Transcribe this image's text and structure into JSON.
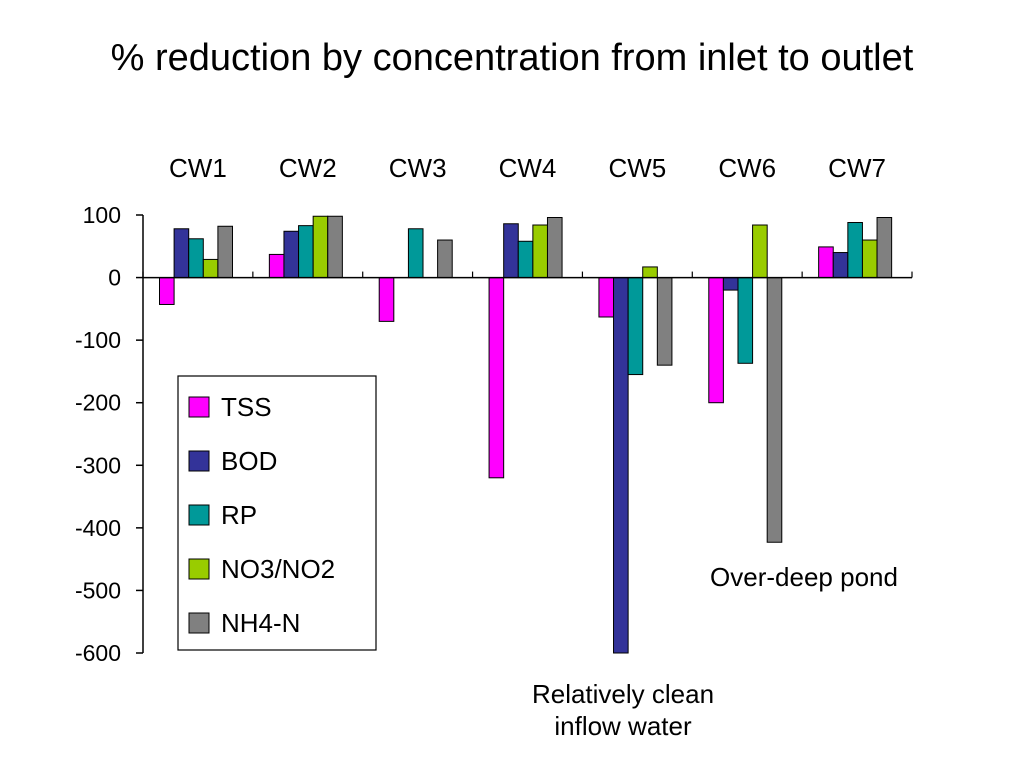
{
  "title": "% reduction by concentration from inlet to outlet",
  "chart_data": {
    "type": "bar",
    "title": "% reduction by concentration from inlet to outlet",
    "categories": [
      "CW1",
      "CW2",
      "CW3",
      "CW4",
      "CW5",
      "CW6",
      "CW7"
    ],
    "category_axis_position": "top",
    "ylim": [
      -600,
      100
    ],
    "yticks": [
      100,
      0,
      -100,
      -200,
      -300,
      -400,
      -500,
      -600
    ],
    "ytick_labels": [
      "100",
      "0",
      "-100",
      "-200",
      "-300",
      "-400",
      "-500",
      "-600"
    ],
    "grid": false,
    "legend_position": "bottom-left",
    "series": [
      {
        "name": "TSS",
        "color": "#FF00FF",
        "values": [
          -43,
          37,
          -70,
          -320,
          -63,
          -200,
          49
        ]
      },
      {
        "name": "BOD",
        "color": "#333399",
        "values": [
          78,
          74,
          null,
          86,
          -600,
          -20,
          40
        ]
      },
      {
        "name": "RP",
        "color": "#009999",
        "values": [
          62,
          83,
          78,
          58,
          -155,
          -137,
          88
        ]
      },
      {
        "name": "NO3/NO2",
        "color": "#99CC00",
        "values": [
          29,
          98,
          null,
          84,
          17,
          84,
          60
        ]
      },
      {
        "name": "NH4-N",
        "color": "#808080",
        "values": [
          82,
          98,
          60,
          96,
          -140,
          -423,
          96
        ]
      }
    ],
    "annotations": [
      {
        "text": "Over-deep pond",
        "category": "CW6"
      },
      {
        "text_lines": [
          "Relatively clean",
          "inflow water"
        ],
        "category": "CW5"
      }
    ]
  }
}
